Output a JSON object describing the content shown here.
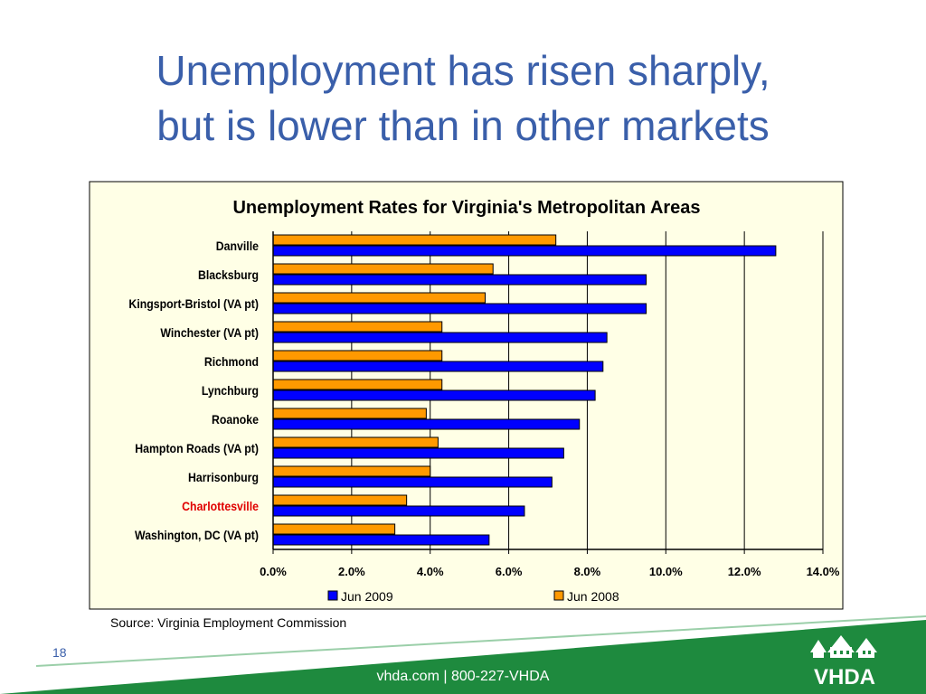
{
  "slide": {
    "title_line1": "Unemployment has risen sharply,",
    "title_line2": "but is lower than in other markets",
    "source": "Source:  Virginia Employment Commission",
    "page_number": "18",
    "footer": "vhda.com | 800-227-VHDA",
    "logo_text": "VHDA",
    "colors": {
      "title": "#3A5FAA",
      "footer_green": "#1E8A3E",
      "highlight_label": "#E00000"
    }
  },
  "chart_data": {
    "type": "bar",
    "orientation": "horizontal",
    "title": "Unemployment Rates for Virginia's Metropolitan Areas",
    "categories": [
      "Danville",
      "Blacksburg",
      "Kingsport-Bristol (VA pt)",
      "Winchester (VA pt)",
      "Richmond",
      "Lynchburg",
      "Roanoke",
      "Hampton Roads (VA pt)",
      "Harrisonburg",
      "Charlottesville",
      "Washington, DC (VA pt)"
    ],
    "highlight_category": "Charlottesville",
    "series": [
      {
        "name": "Jun 2009",
        "color": "#0000FF",
        "values": [
          12.8,
          9.5,
          9.5,
          8.5,
          8.4,
          8.2,
          7.8,
          7.4,
          7.1,
          6.4,
          5.5
        ]
      },
      {
        "name": "Jun 2008",
        "color": "#FF9900",
        "values": [
          7.2,
          5.6,
          5.4,
          4.3,
          4.3,
          4.3,
          3.9,
          4.2,
          4.0,
          3.4,
          3.1
        ]
      }
    ],
    "xlim": [
      0,
      14
    ],
    "xticks": [
      "0.0%",
      "2.0%",
      "4.0%",
      "6.0%",
      "8.0%",
      "10.0%",
      "12.0%",
      "14.0%"
    ],
    "grid": true,
    "legend": "bottom",
    "background": "#FFFFE6"
  }
}
